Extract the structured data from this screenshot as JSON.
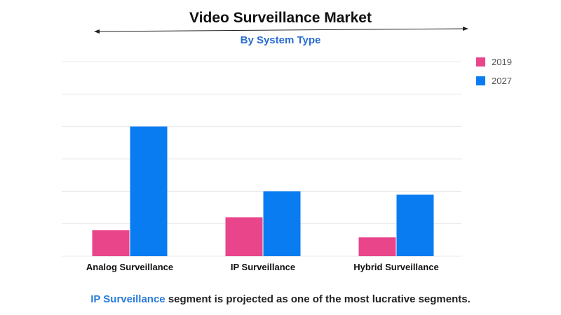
{
  "title": "Video Surveillance Market",
  "subtitle": "By System Type",
  "caption": {
    "highlight": "IP Surveillance",
    "rest": " segment is projected as one of the most lucrative segments."
  },
  "colors": {
    "series_2019": "#e8458b",
    "series_2027": "#0a7cf2",
    "grid": "#e8e8e8",
    "subtitle": "#2a6bd0",
    "caption_highlight": "#2a7bd8"
  },
  "chart_data": {
    "type": "bar",
    "title": "Video Surveillance Market",
    "subtitle": "By System Type",
    "categories": [
      "Analog Surveillance",
      "IP Surveillance",
      "Hybrid Surveillance"
    ],
    "series": [
      {
        "name": "2019",
        "values": [
          0.8,
          1.2,
          0.58
        ],
        "color": "#e8458b"
      },
      {
        "name": "2027",
        "values": [
          4.0,
          2.0,
          1.9
        ],
        "color": "#0a7cf2"
      }
    ],
    "xlabel": "",
    "ylabel": "",
    "ylim": [
      0,
      6
    ],
    "grid": true,
    "legend": "top-right",
    "y_ticks_visible": false
  }
}
